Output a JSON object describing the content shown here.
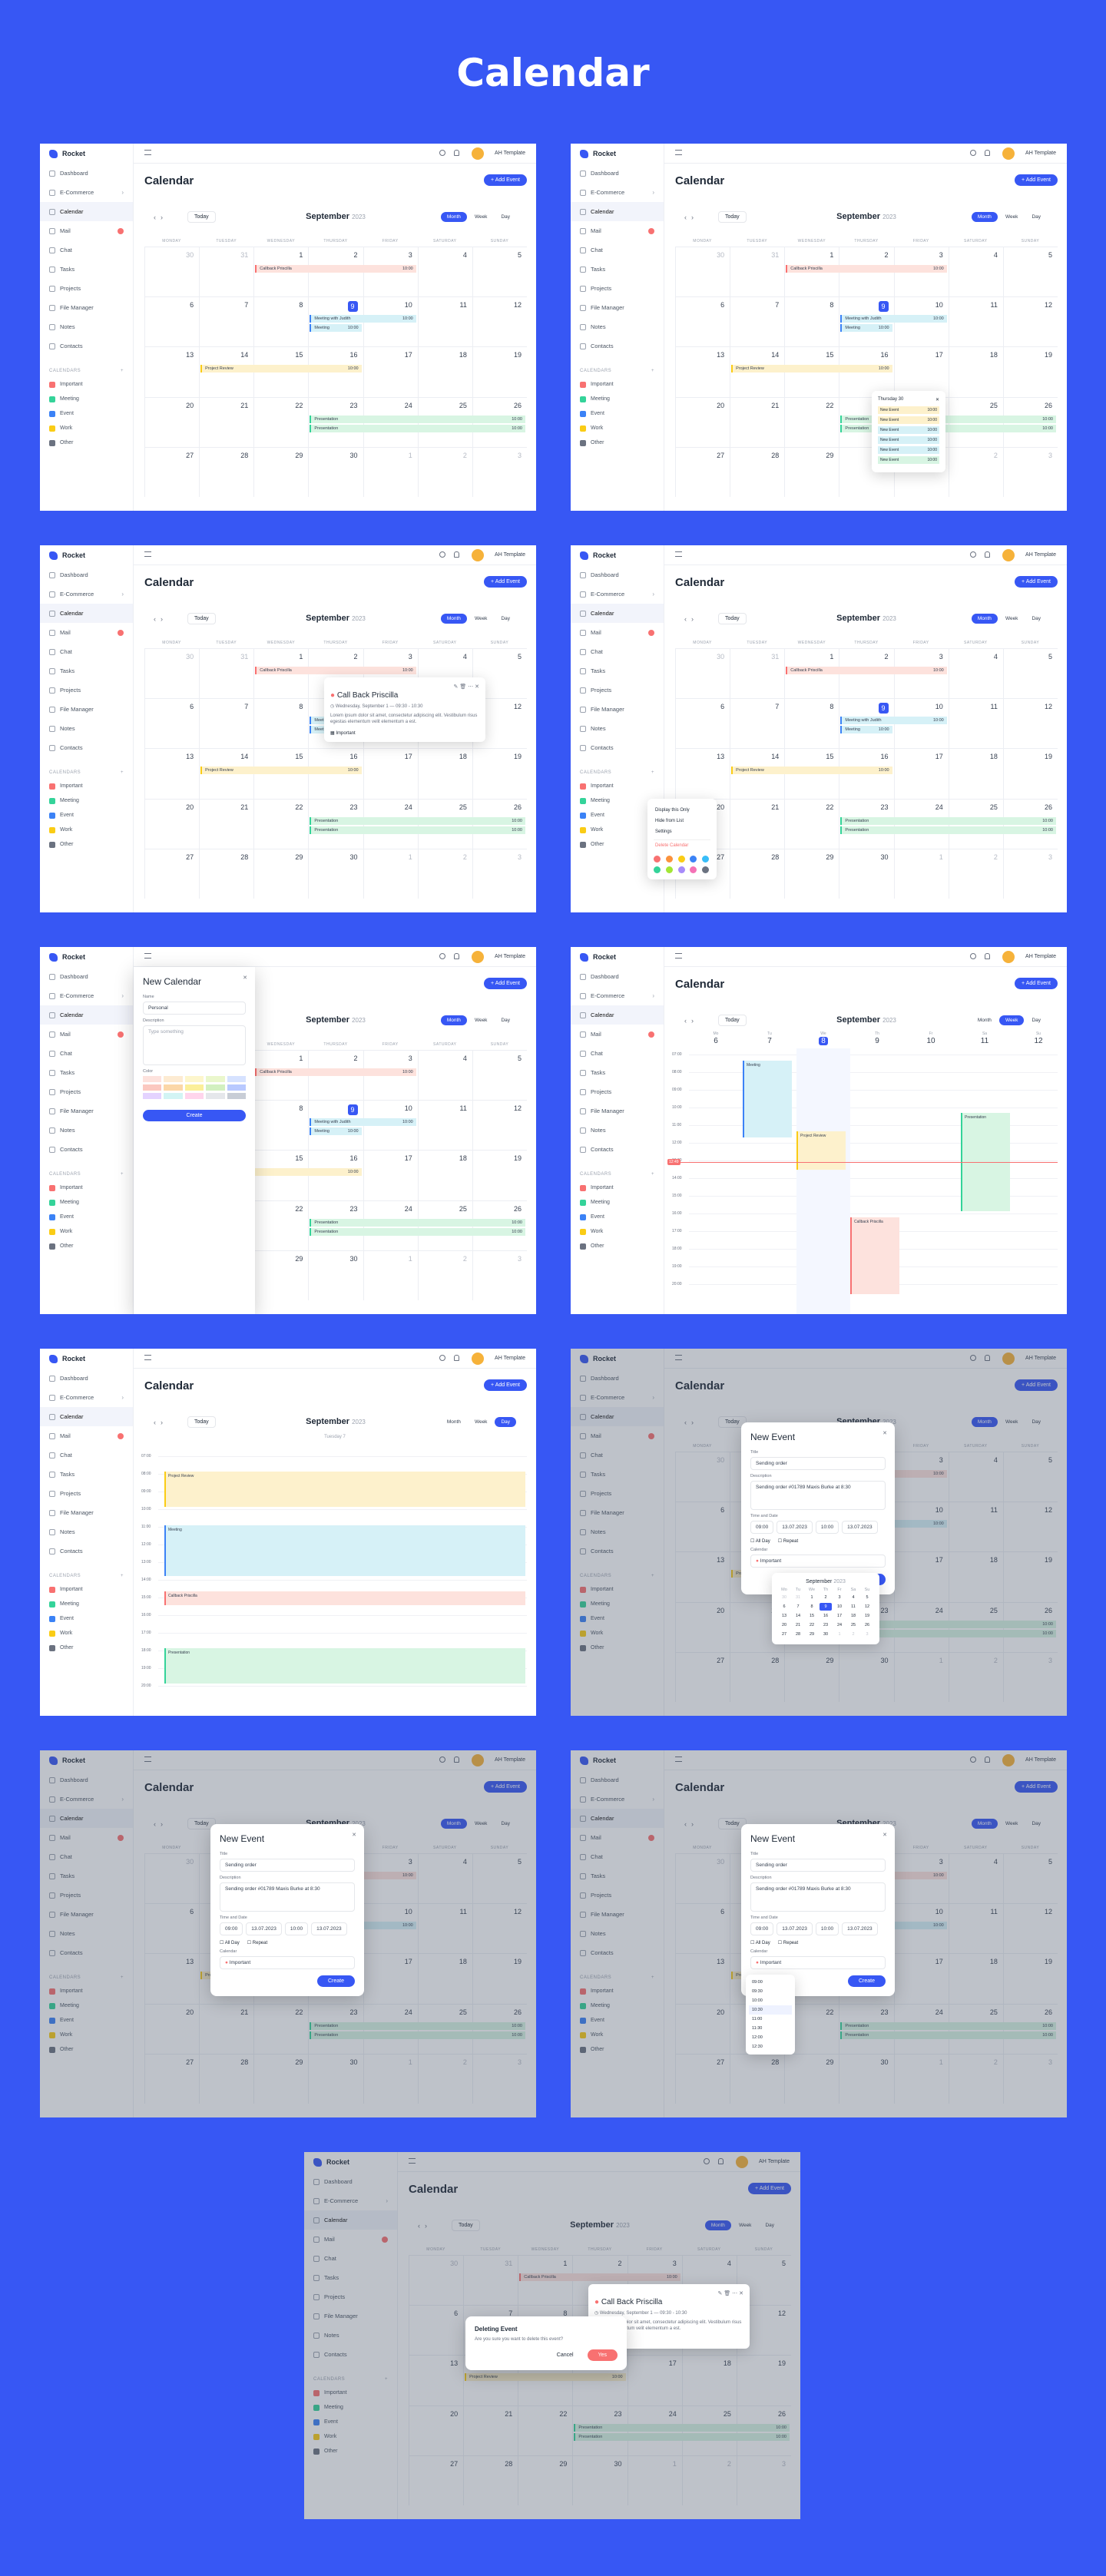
{
  "page_title": "Calendar",
  "app": {
    "brand": "Rocket",
    "user": "AH Template",
    "page_heading": "Calendar",
    "add_event": "+ Add Event",
    "nav": [
      "Dashboard",
      "E-Commerce",
      "Calendar",
      "Mail",
      "Chat",
      "Tasks",
      "Projects",
      "File Manager",
      "Notes",
      "Contacts"
    ],
    "calendars_heading": "CALENDARS",
    "calendars": [
      {
        "label": "Important",
        "color": "#f87171"
      },
      {
        "label": "Meeting",
        "color": "#34d399"
      },
      {
        "label": "Event",
        "color": "#3b82f6"
      },
      {
        "label": "Work",
        "color": "#facc15"
      },
      {
        "label": "Other",
        "color": "#6b7280"
      }
    ]
  },
  "toolbar": {
    "today": "Today",
    "month": "September",
    "year": "2023",
    "views": [
      "Month",
      "Week",
      "Day"
    ]
  },
  "weekdays": [
    "MONDAY",
    "TUESDAY",
    "WEDNESDAY",
    "THURSDAY",
    "FRIDAY",
    "SATURDAY",
    "SUNDAY"
  ],
  "days": [
    "30",
    "31",
    "1",
    "2",
    "3",
    "4",
    "5",
    "6",
    "7",
    "8",
    "9",
    "10",
    "11",
    "12",
    "13",
    "14",
    "15",
    "16",
    "17",
    "18",
    "19",
    "20",
    "21",
    "22",
    "23",
    "24",
    "25",
    "26",
    "27",
    "28",
    "29",
    "30",
    "1",
    "2",
    "3"
  ],
  "events": {
    "call_back": "Callback Priscilla",
    "meeting": "Meeting with Judith",
    "meeting2": "Meeting",
    "project": "Project Review",
    "presentation": "Presentation",
    "time": "10:00"
  },
  "more_popover": {
    "title": "Thursday 30",
    "item": "New Event"
  },
  "event_popover": {
    "title": "Call Back Priscilla",
    "when": "Wednesday, September 1 — 09:30 - 10:30",
    "body": "Lorem ipsum dolor sit amet, consectetur adipiscing elit. Vestibulum risus egestas elementum velit elementum a est.",
    "calendar": "Important"
  },
  "calendar_menu": {
    "items": [
      "Display this Only",
      "Hide from List",
      "Settings",
      "Delete Calendar"
    ]
  },
  "new_calendar": {
    "title": "New Calendar",
    "name_label": "Name",
    "name_value": "Personal",
    "desc_label": "Description",
    "desc_placeholder": "Type something",
    "color_label": "Color",
    "create": "Create"
  },
  "week_view": {
    "days": [
      {
        "n": "6",
        "d": "Mo"
      },
      {
        "n": "7",
        "d": "Tu"
      },
      {
        "n": "8",
        "d": "We"
      },
      {
        "n": "9",
        "d": "Th"
      },
      {
        "n": "10",
        "d": "Fr"
      },
      {
        "n": "11",
        "d": "Sa"
      },
      {
        "n": "12",
        "d": "Su"
      }
    ],
    "hours": [
      "07:00",
      "08:00",
      "09:00",
      "10:00",
      "11:00",
      "12:00",
      "13:00",
      "14:00",
      "15:00",
      "16:00",
      "17:00",
      "18:00",
      "19:00",
      "20:00"
    ],
    "now": "12:49"
  },
  "day_view": {
    "heading": "Tuesday 7"
  },
  "new_event": {
    "title": "New Event",
    "title_label": "Title",
    "title_value": "Sending order",
    "desc_label": "Description",
    "desc_value": "Sending order #01789 Maxis Burke at 8:30",
    "time_label": "Time and Date",
    "start_time": "09:00",
    "start_date": "13.07.2023",
    "end_time": "10:00",
    "end_date": "13.07.2023",
    "all_day": "All Day",
    "repeat": "Repeat",
    "calendar_label": "Calendar",
    "calendar_value": "Important",
    "create": "Create",
    "dp_month": "September",
    "dp_year": "2023",
    "dp_days": [
      "Mo",
      "Tu",
      "We",
      "Th",
      "Fr",
      "Sa",
      "Su"
    ],
    "times": [
      "09:00",
      "09:30",
      "10:00",
      "10:30",
      "11:00",
      "11:30",
      "12:00",
      "12:30"
    ]
  },
  "delete_dialog": {
    "title": "Deleting Event",
    "text": "Are you sure you want to delete this event?",
    "cancel": "Cancel",
    "yes": "Yes"
  }
}
